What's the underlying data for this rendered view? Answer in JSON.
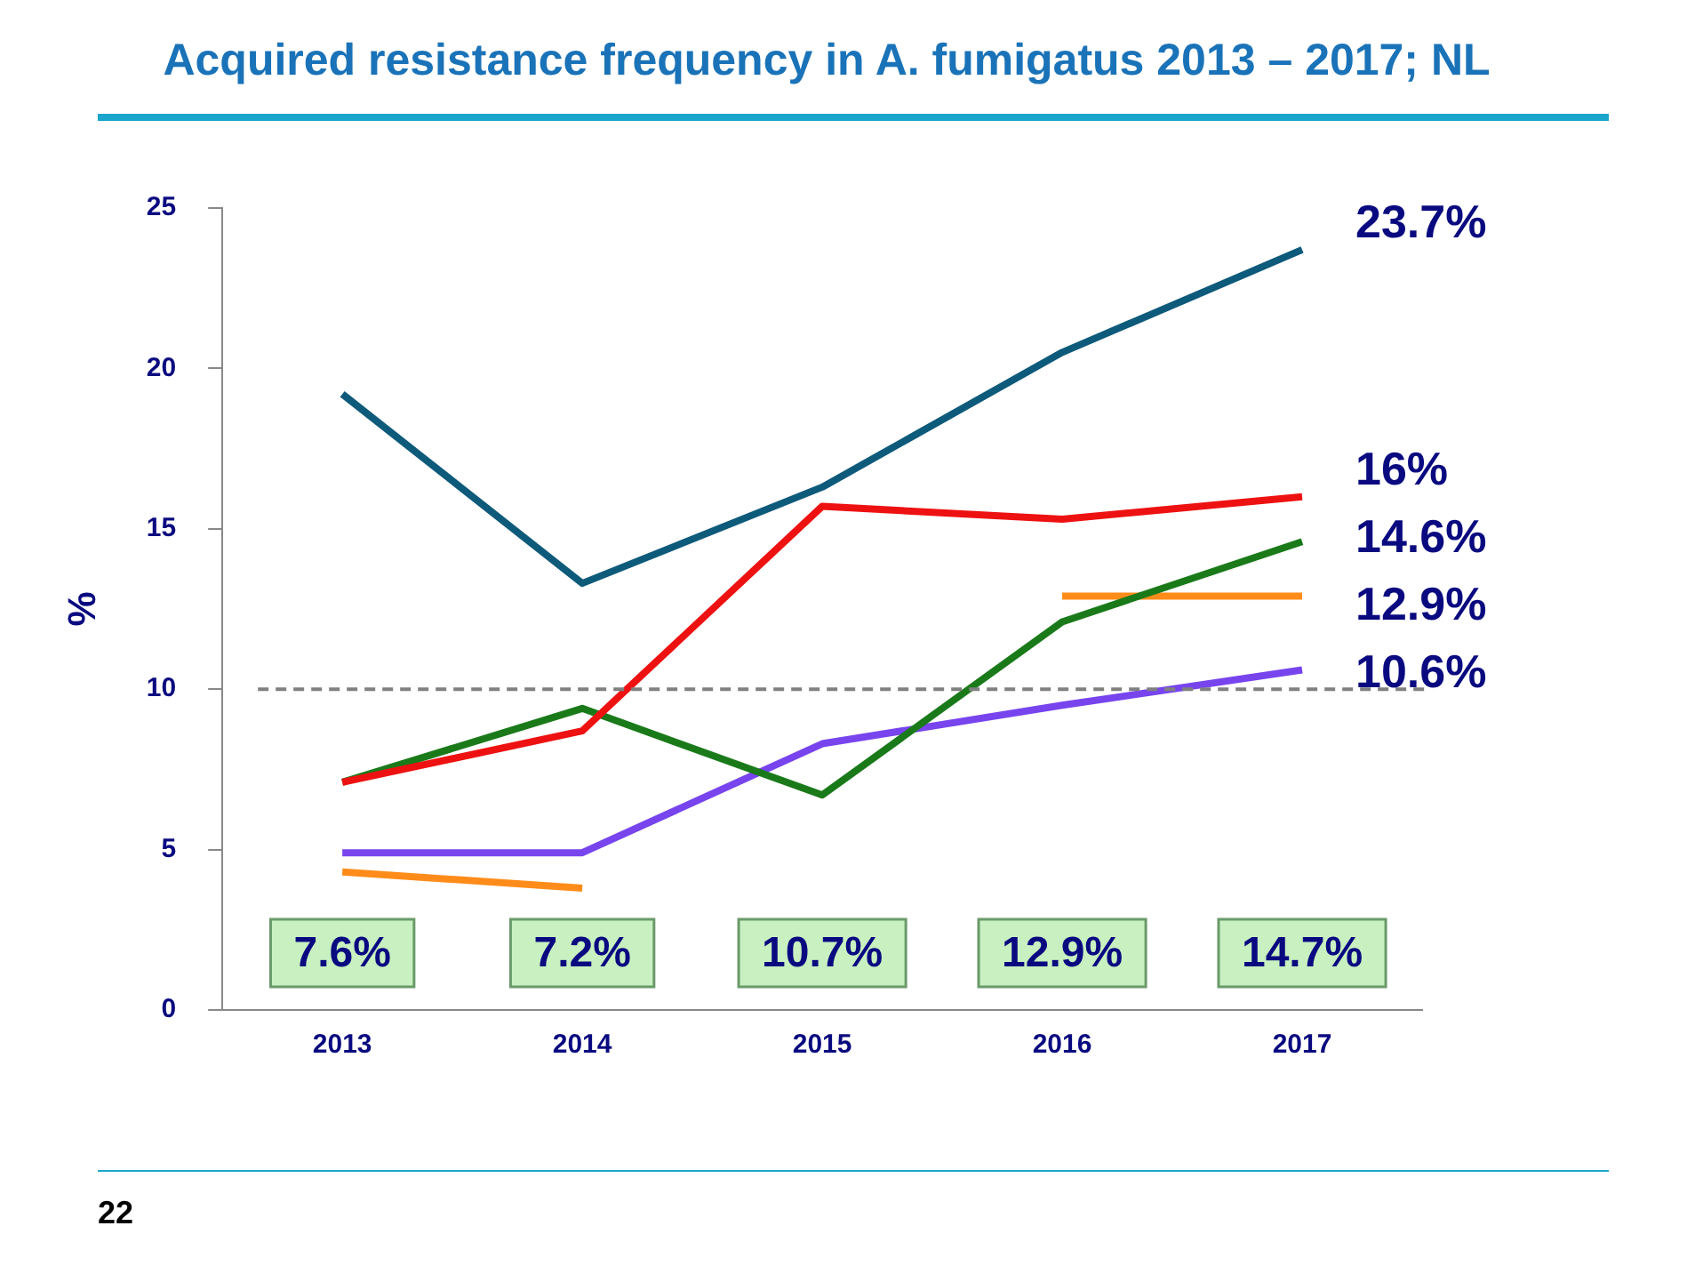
{
  "chart_data": {
    "type": "line",
    "title": "Acquired resistance frequency in A. fumigatus 2013 – 2017; NL",
    "ylabel": "%",
    "categories": [
      "2013",
      "2014",
      "2015",
      "2016",
      "2017"
    ],
    "series": [
      {
        "color": "#0e5a7a",
        "values": [
          19.2,
          13.3,
          16.3,
          20.5,
          23.7
        ],
        "value_labels": [
          null,
          null,
          null,
          null,
          "23.7%"
        ]
      },
      {
        "color": "#ee1111",
        "values": [
          7.1,
          8.7,
          15.7,
          15.3,
          16
        ],
        "value_labels": [
          null,
          null,
          null,
          null,
          "16%"
        ]
      },
      {
        "color": "#1a7a1a",
        "values": [
          7.1,
          9.4,
          6.7,
          12.1,
          14.6
        ],
        "value_labels": [
          null,
          null,
          null,
          null,
          "14.6%"
        ]
      },
      {
        "color": "#ff8c1a",
        "values": [
          4.3,
          3.8,
          null,
          12.9,
          12.9
        ],
        "value_labels": [
          null,
          null,
          null,
          null,
          "12.9%"
        ]
      },
      {
        "color": "#7744ee",
        "values": [
          4.9,
          4.9,
          8.3,
          9.5,
          10.6
        ],
        "value_labels": [
          null,
          null,
          null,
          null,
          "10.6%"
        ]
      }
    ],
    "ref_lines": [
      {
        "axis": "y",
        "value": 10,
        "color": "#808080",
        "line_style": "dashed"
      }
    ],
    "annotations": [
      "7.6%",
      "7.2%",
      "10.7%",
      "12.9%",
      "14.7%",
      "22"
    ],
    "ylim": [
      0,
      25
    ],
    "yticks": [
      0,
      5,
      10,
      15,
      20,
      25
    ],
    "grid": false,
    "legend": false,
    "marker": "none",
    "line_style": "solid"
  }
}
